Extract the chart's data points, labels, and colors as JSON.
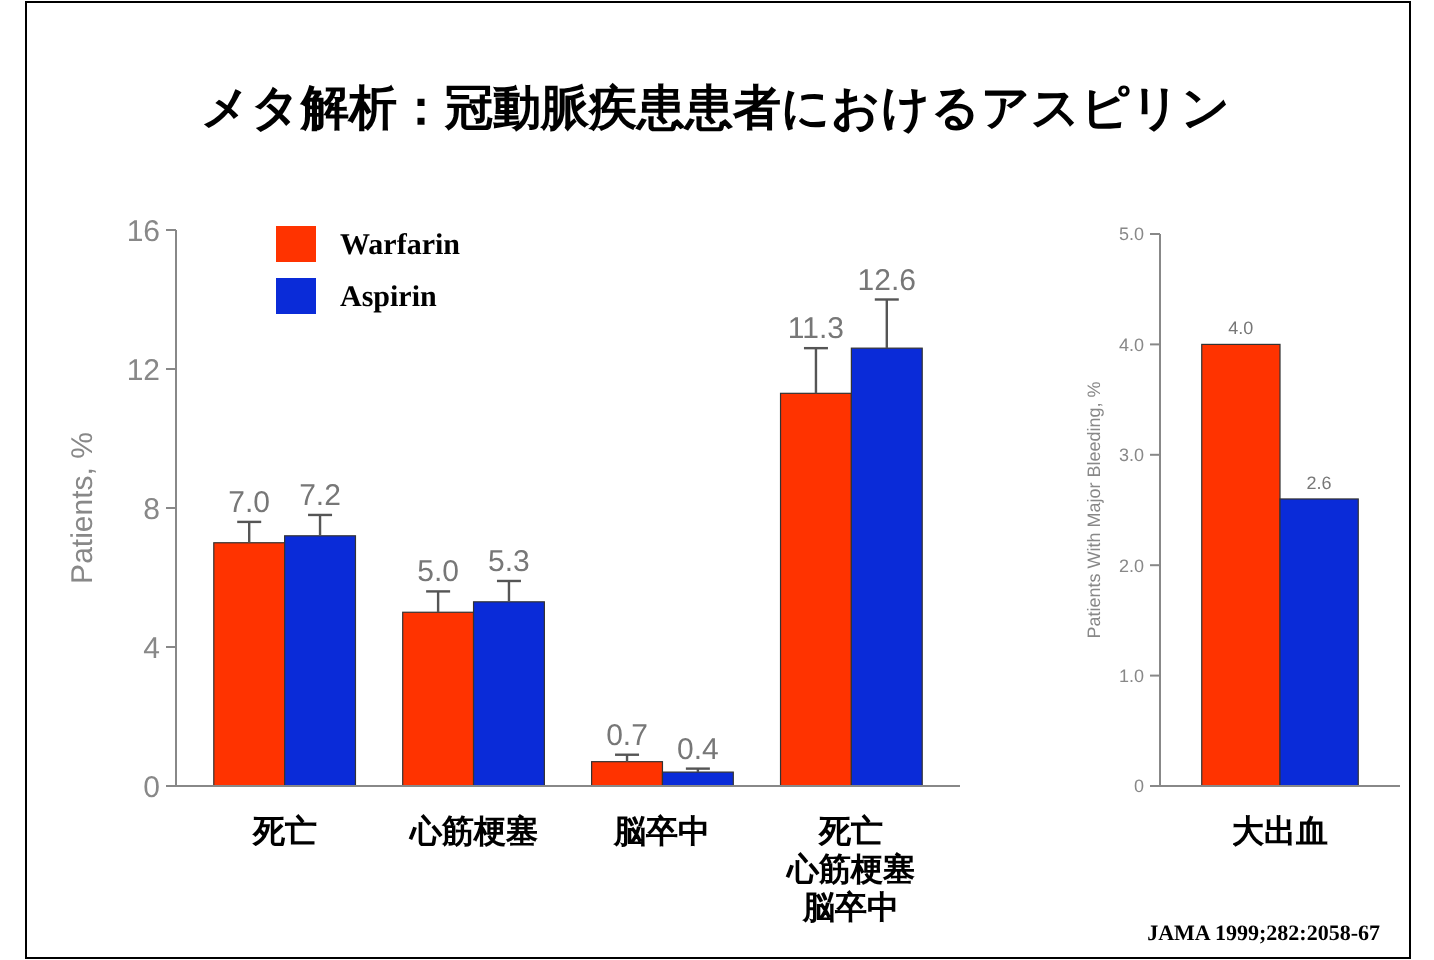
{
  "chart_data": [
    {
      "type": "bar",
      "title": "メタ解析：冠動脈疾患患者におけるアスピリン",
      "ylabel": "Patients, %",
      "categories": [
        "死亡",
        "心筋梗塞",
        "脳卒中",
        "死亡心筋梗塞脳卒中"
      ],
      "series": [
        {
          "name": "Warfarin",
          "color": "#ff3300",
          "values": [
            7.0,
            5.0,
            0.7,
            11.3
          ],
          "value_labels": [
            "7.0",
            "5.0",
            "0.7",
            "11.3"
          ],
          "errors": [
            [
              7.0,
              7.6
            ],
            [
              5.0,
              5.6
            ],
            [
              0.7,
              0.9
            ],
            [
              11.3,
              12.6
            ]
          ]
        },
        {
          "name": "Aspirin",
          "color": "#0a2bd8",
          "values": [
            7.2,
            5.3,
            0.4,
            12.6
          ],
          "value_labels": [
            "7.2",
            "5.3",
            "0.4",
            "12.6"
          ],
          "errors": [
            [
              7.2,
              7.8
            ],
            [
              5.3,
              5.9
            ],
            [
              0.4,
              0.5
            ],
            [
              12.6,
              14.0
            ]
          ]
        }
      ],
      "ylim": [
        0,
        16
      ],
      "yticks": [
        0,
        4,
        8,
        12,
        16
      ],
      "legend": "top left",
      "grid": false
    },
    {
      "type": "bar",
      "ylabel": "Patients With Major Bleeding, %",
      "categories": [
        "大出血"
      ],
      "series": [
        {
          "color": "#ff3300",
          "values": [
            4.0
          ],
          "value_labels": [
            "4.0"
          ]
        },
        {
          "color": "#0a2bd8",
          "values": [
            2.6
          ],
          "value_labels": [
            "2.6"
          ]
        }
      ],
      "ylim": [
        0,
        5
      ],
      "yticks": [
        0,
        {
          "value": 1,
          "label": "1.0"
        },
        {
          "value": 2,
          "label": "2.0"
        },
        {
          "value": 3,
          "label": "3.0"
        },
        {
          "value": 4,
          "label": "4.0"
        },
        {
          "value": 5,
          "label": "5.0"
        }
      ],
      "grid": false,
      "annotations": [
        "JAMA 1999;282:2058-67"
      ]
    }
  ]
}
